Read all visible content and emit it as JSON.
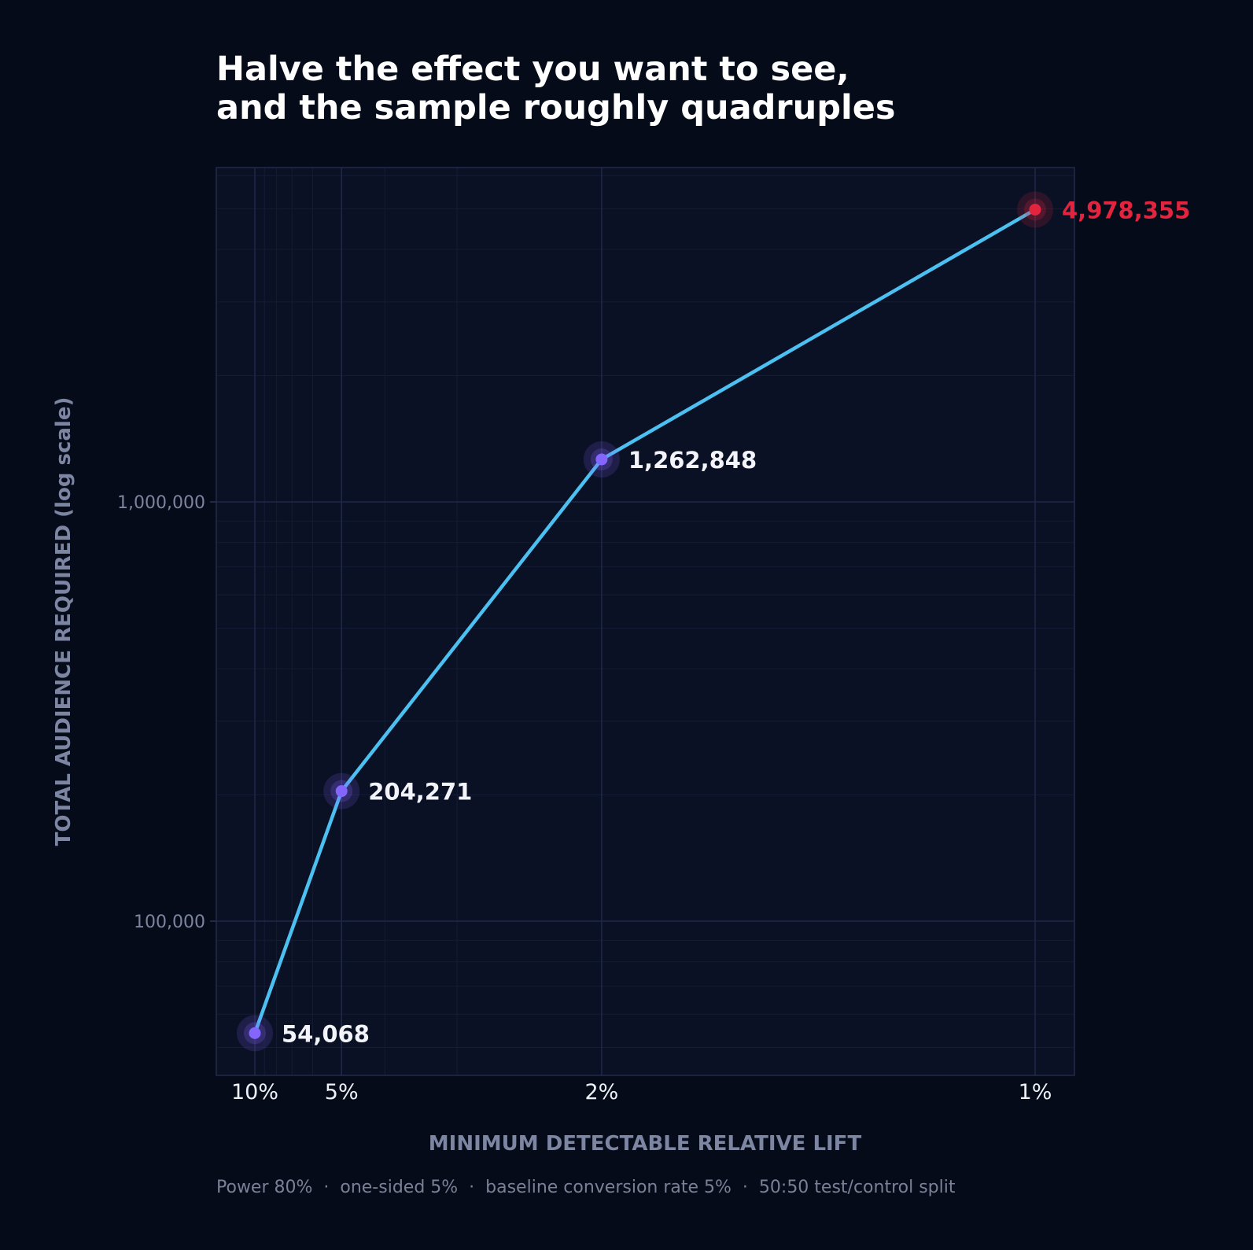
{
  "chart_data": {
    "type": "line",
    "title": [
      "Halve the effect you want to see,",
      "and the sample roughly quadruples"
    ],
    "xlabel": "MINIMUM DETECTABLE RELATIVE LIFT",
    "ylabel": "TOTAL AUDIENCE REQUIRED  (log scale)",
    "x_scale": "reciprocal",
    "y_scale": "log",
    "x_tick_labels": [
      "10%",
      "5%",
      "2%",
      "1%"
    ],
    "y_ticks": [
      100000,
      1000000
    ],
    "y_tick_labels": [
      "100,000",
      "1,000,000"
    ],
    "ylim": [
      42000,
      7000000
    ],
    "grid": true,
    "series": [
      {
        "x": [
          10,
          5,
          2,
          1
        ],
        "values": [
          54068,
          204271,
          1262848,
          4978355
        ],
        "labels": [
          "54,068",
          "204,271",
          "1,262,848",
          "4,978,355"
        ]
      }
    ],
    "highlight_index": 3,
    "footnote": "Power 80%  ·  one-sided 5%  ·  baseline conversion rate 5%  ·  50:50 test/control split"
  },
  "colors": {
    "background": "#050b18",
    "plot_background": "#0b1125",
    "grid_major": "#1f2848",
    "grid_minor": "#141b34",
    "line": "#4cc0f0",
    "point": "#8466ff",
    "highlight": "#e3243f"
  }
}
